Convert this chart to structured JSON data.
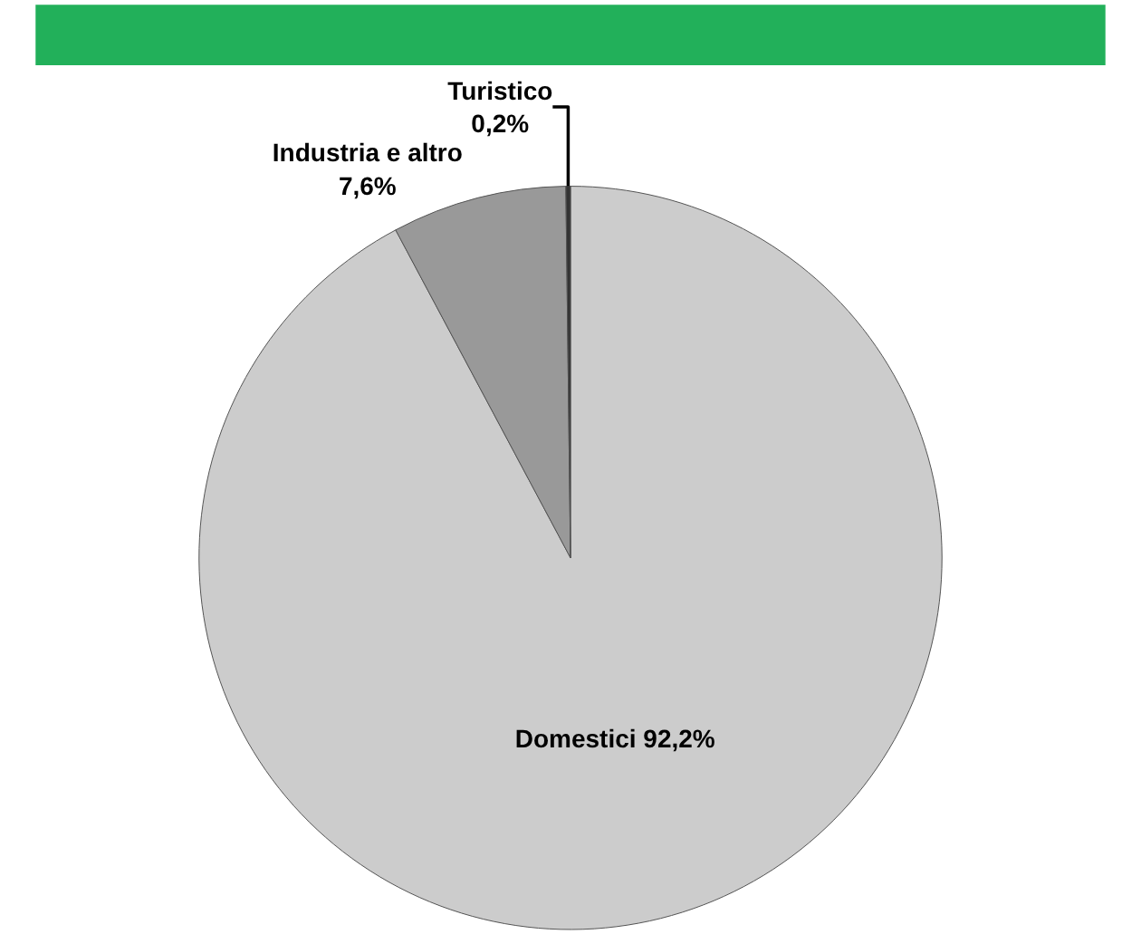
{
  "chart_data": {
    "type": "pie",
    "categories": [
      "Domestici",
      "Industria e altro",
      "Turistico"
    ],
    "values": [
      92.2,
      7.6,
      0.2
    ],
    "value_labels": [
      "92,2%",
      "7,6%",
      "0,2%"
    ],
    "colors": [
      "#cccccc",
      "#999999",
      "#333333"
    ],
    "legend": false
  }
}
